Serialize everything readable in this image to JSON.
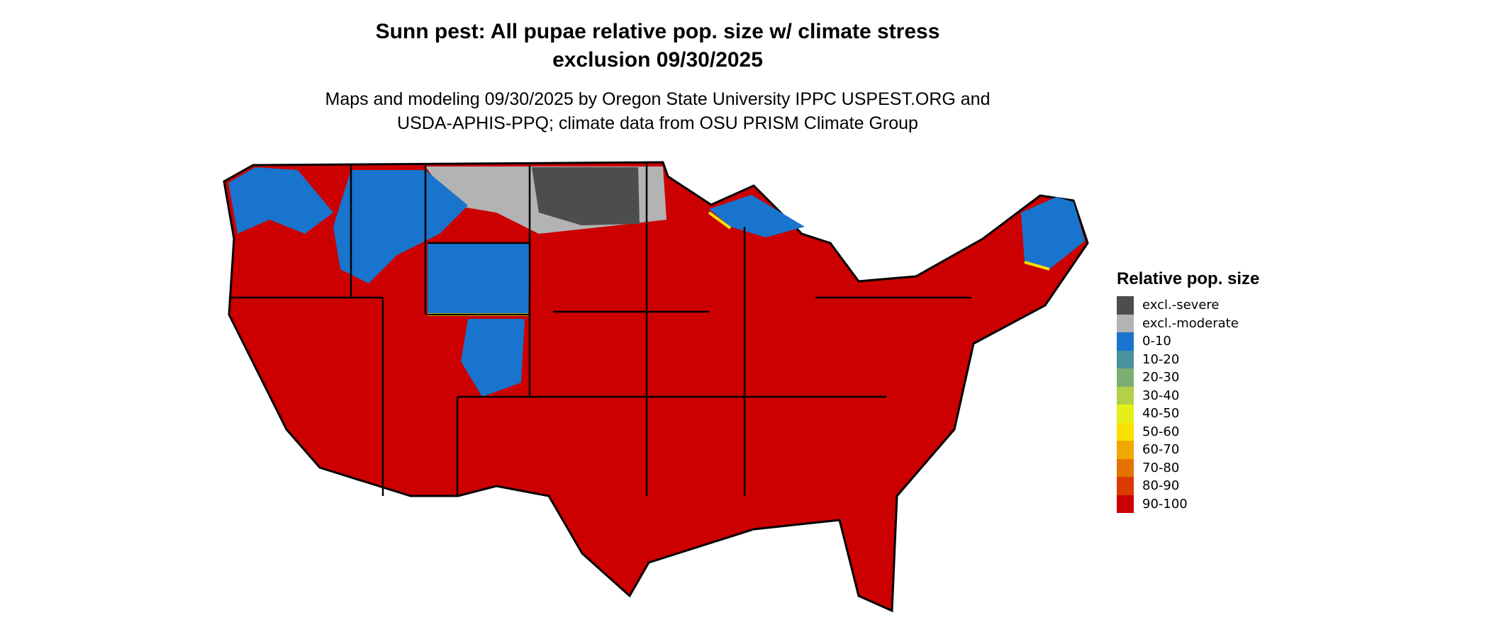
{
  "title_lines": [
    "Sunn pest: All pupae relative pop. size w/ climate stress",
    "exclusion 09/30/2025"
  ],
  "subtitle_lines": [
    "Maps and modeling 09/30/2025 by Oregon State University IPPC USPEST.ORG and",
    "USDA-APHIS-PPQ; climate data from OSU PRISM Climate Group"
  ],
  "legend": {
    "title": "Relative pop. size",
    "items": [
      {
        "label": "excl.-severe",
        "color": "#4d4d4d"
      },
      {
        "label": "excl.-moderate",
        "color": "#b3b3b3"
      },
      {
        "label": "0-10",
        "color": "#1874cd"
      },
      {
        "label": "10-20",
        "color": "#4a919e"
      },
      {
        "label": "20-30",
        "color": "#7cae72"
      },
      {
        "label": "30-40",
        "color": "#b2d147"
      },
      {
        "label": "40-50",
        "color": "#e5f01a"
      },
      {
        "label": "50-60",
        "color": "#fae100"
      },
      {
        "label": "60-70",
        "color": "#f0a800"
      },
      {
        "label": "70-80",
        "color": "#e57300"
      },
      {
        "label": "80-90",
        "color": "#db3b00"
      },
      {
        "label": "90-100",
        "color": "#cc0000"
      }
    ]
  }
}
